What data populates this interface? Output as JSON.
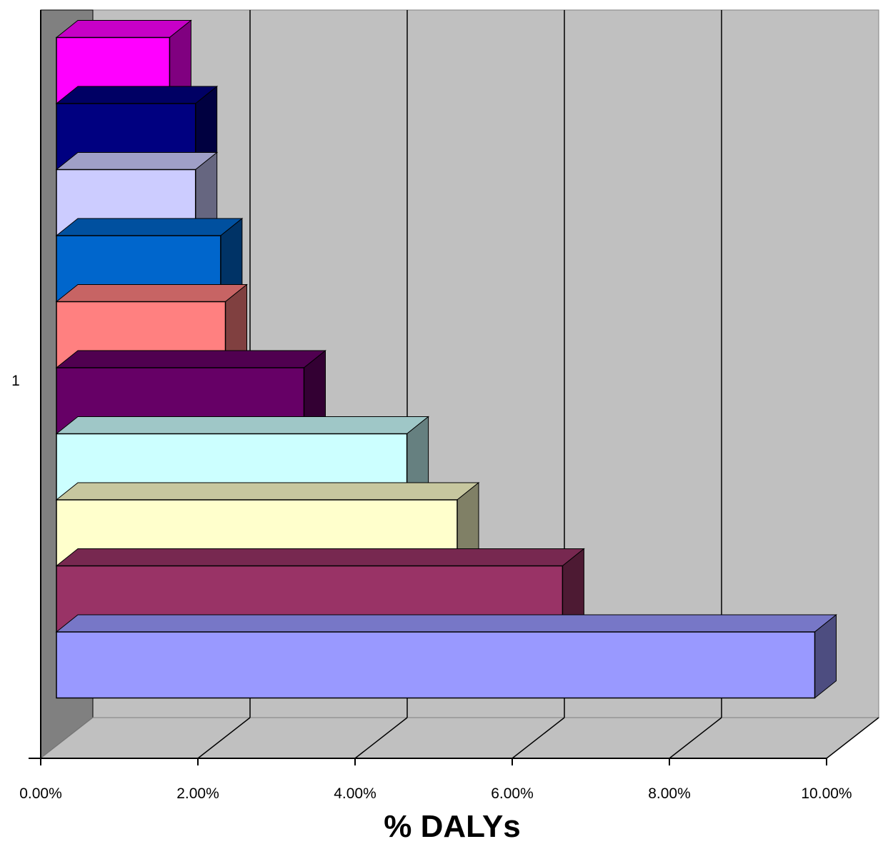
{
  "chart_data": {
    "type": "bar",
    "orientation": "horizontal",
    "style": "3d",
    "title": "",
    "xlabel": "% DALYs",
    "ylabel": "",
    "categories": [
      "1"
    ],
    "xlim": [
      0,
      10
    ],
    "x_ticks": [
      "0.00%",
      "2.00%",
      "4.00%",
      "6.00%",
      "8.00%",
      "10.00%"
    ],
    "grid": true,
    "legend": "none",
    "series": [
      {
        "color": "#9999ff",
        "values": [
          9.65
        ]
      },
      {
        "color": "#993366",
        "values": [
          6.44
        ]
      },
      {
        "color": "#ffffcc",
        "values": [
          5.1
        ]
      },
      {
        "color": "#ccffff",
        "values": [
          4.46
        ]
      },
      {
        "color": "#660066",
        "values": [
          3.15
        ]
      },
      {
        "color": "#ff8080",
        "values": [
          2.15
        ]
      },
      {
        "color": "#0066cc",
        "values": [
          2.09
        ]
      },
      {
        "color": "#ccccff",
        "values": [
          1.77
        ]
      },
      {
        "color": "#000080",
        "values": [
          1.77
        ]
      },
      {
        "color": "#ff00ff",
        "values": [
          1.44
        ]
      }
    ]
  }
}
